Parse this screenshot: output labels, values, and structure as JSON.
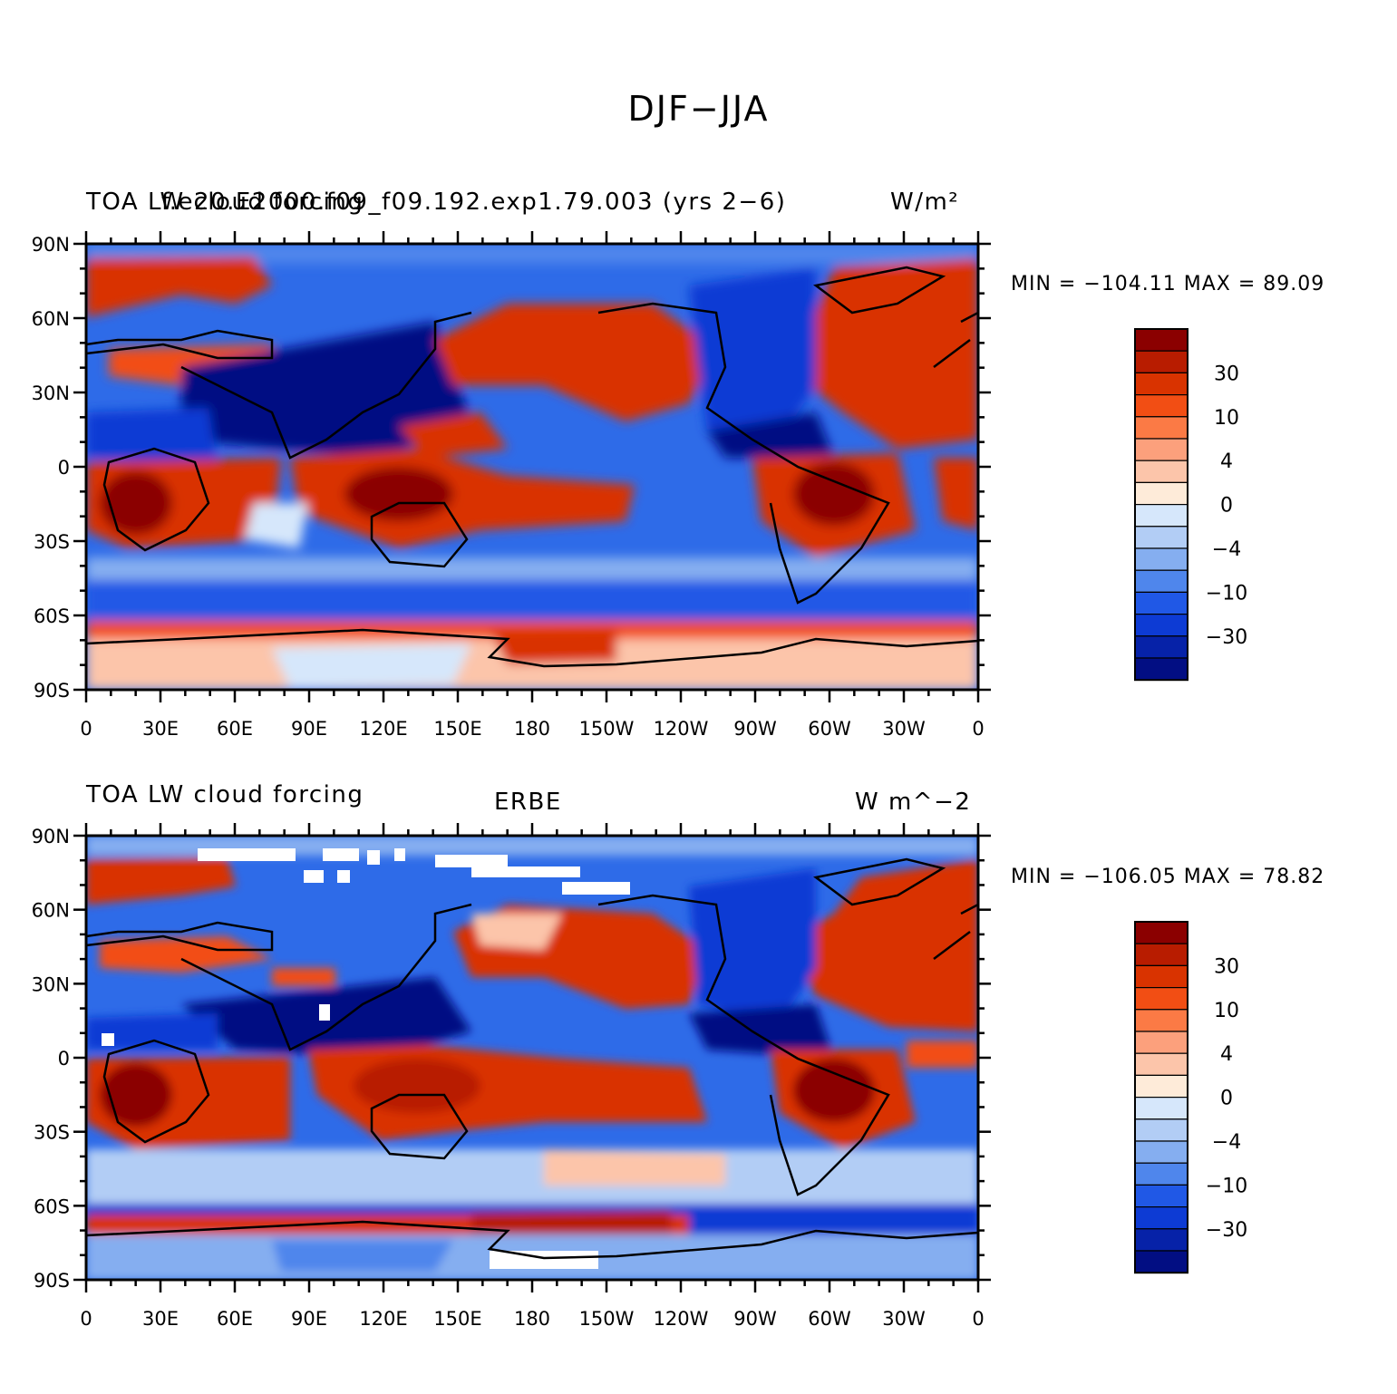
{
  "main_title": "DJF−JJA",
  "panels": [
    {
      "title_left": "TOA LW cloud forcing",
      "title_center": "f.e20.E2000.f09_f09.192.exp1.79.003 (yrs 2−6)",
      "title_right": "W/m²",
      "min_max": "MIN = −104.11 MAX =   89.09"
    },
    {
      "title_left": "TOA LW cloud forcing",
      "title_center": "ERBE",
      "title_right": "W m^−2",
      "min_max": "MIN = −106.05 MAX =   78.82"
    }
  ],
  "lat_labels": [
    "90N",
    "60N",
    "30N",
    "0",
    "30S",
    "60S",
    "90S"
  ],
  "lon_labels": [
    "0",
    "30E",
    "60E",
    "90E",
    "120E",
    "150E",
    "180",
    "150W",
    "120W",
    "90W",
    "60W",
    "30W",
    "0"
  ],
  "colorbar": {
    "labels": [
      "30",
      "10",
      "4",
      "0",
      "−4",
      "−10",
      "−30"
    ],
    "colors": [
      "#8b0000",
      "#b81c00",
      "#d93300",
      "#f24e14",
      "#fb7a45",
      "#fca07c",
      "#fcc5aa",
      "#feebd9",
      "#d6e7fb",
      "#b2cdf5",
      "#85aef0",
      "#4f86ec",
      "#2058e6",
      "#0d3bd4",
      "#0622a8",
      "#020e83"
    ]
  }
}
